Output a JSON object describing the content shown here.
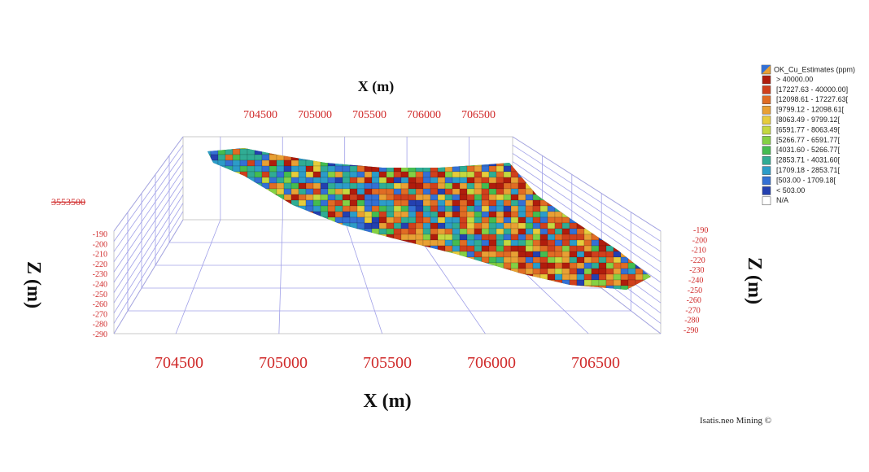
{
  "x_axis": {
    "title_top": "X (m)",
    "title_bottom": "X (m)",
    "ticks_top": [
      "704500",
      "705000",
      "705500",
      "706000",
      "706500"
    ],
    "ticks_bottom": [
      "704500",
      "705000",
      "705500",
      "706000",
      "706500"
    ]
  },
  "z_axis": {
    "title_left": "Z (m)",
    "title_right": "Z (m)",
    "ticks_left": [
      "-190",
      "-200",
      "-210",
      "-220",
      "-230",
      "-240",
      "-250",
      "-260",
      "-270",
      "-280",
      "-290"
    ],
    "ticks_right": [
      "-190",
      "-200",
      "-210",
      "-220",
      "-230",
      "-240",
      "-250",
      "-260",
      "-270",
      "-280",
      "-290"
    ]
  },
  "y_axis": {
    "ticks": [
      "3553500"
    ]
  },
  "legend": {
    "title": "OK_Cu_Estimates (ppm)",
    "items": [
      {
        "label": "> 40000.00",
        "color": "#b01c0c"
      },
      {
        "label": "[17227.63 - 40000.00]",
        "color": "#d0401c"
      },
      {
        "label": "[12098.61 - 17227.63[",
        "color": "#e06c24"
      },
      {
        "label": "[9799.12 - 12098.61[",
        "color": "#e8a034"
      },
      {
        "label": "[8063.49 - 9799.12[",
        "color": "#e6cc3c"
      },
      {
        "label": "[6591.77 - 8063.49[",
        "color": "#c4d840"
      },
      {
        "label": "[5266.77 - 6591.77[",
        "color": "#84d044"
      },
      {
        "label": "[4031.60 - 5266.77[",
        "color": "#44bc50"
      },
      {
        "label": "[2853.71 - 4031.60[",
        "color": "#30ac94"
      },
      {
        "label": "[1709.18 - 2853.71[",
        "color": "#2c9cc8"
      },
      {
        "label": "[503.00 - 1709.18[",
        "color": "#3470d4"
      },
      {
        "label": "< 503.00",
        "color": "#2440b0"
      },
      {
        "label": "N/A",
        "color": "#ffffff"
      }
    ]
  },
  "footer": "Isatis.neo Mining ©"
}
